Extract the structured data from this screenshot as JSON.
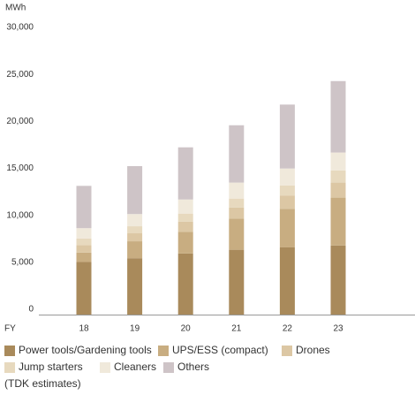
{
  "chart_data": {
    "type": "bar",
    "stacked": true,
    "y_label": "MWh",
    "x_label": "FY",
    "note": "(TDK estimates)",
    "categories": [
      "18",
      "19",
      "20",
      "21",
      "22",
      "23"
    ],
    "series": [
      {
        "name": "Power tools/Gardening tools",
        "color": "#a98a5b",
        "values": [
          5600,
          6000,
          6500,
          6900,
          7150,
          7350
        ]
      },
      {
        "name": "UPS/ESS (compact)",
        "color": "#c8ad81",
        "values": [
          1000,
          1800,
          2300,
          3300,
          4100,
          5100
        ]
      },
      {
        "name": "Drones",
        "color": "#dcc7a4",
        "values": [
          800,
          850,
          1100,
          1200,
          1400,
          1600
        ]
      },
      {
        "name": "Jump starters",
        "color": "#e7d9be",
        "values": [
          700,
          750,
          850,
          950,
          1100,
          1300
        ]
      },
      {
        "name": "Cleaners",
        "color": "#f0e9db",
        "values": [
          1100,
          1300,
          1500,
          1700,
          1800,
          1900
        ]
      },
      {
        "name": "Others",
        "color": "#cec4c7",
        "values": [
          4500,
          5100,
          5550,
          6100,
          6800,
          7600
        ]
      }
    ],
    "ylim": [
      0,
      30000
    ],
    "yticks": [
      0,
      {
        "value": 5000,
        "label": "5,000"
      },
      {
        "value": 10000,
        "label": "10,000"
      },
      {
        "value": 15000,
        "label": "15,000"
      },
      {
        "value": 20000,
        "label": "20,000"
      },
      {
        "value": 25000,
        "label": "25,000"
      },
      {
        "value": 30000,
        "label": "30,000"
      }
    ]
  }
}
